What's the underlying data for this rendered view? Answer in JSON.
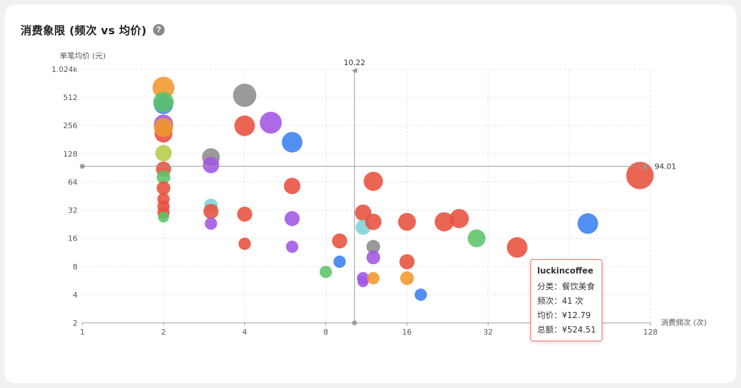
{
  "header": {
    "title": "消费象限 (频次 vs 均价)",
    "help_icon": "question-circle-icon"
  },
  "tooltip": {
    "title": "luckincoffee",
    "rows": [
      "分类：餐饮美食",
      "频次：41 次",
      "均价：¥12.79",
      "总额：¥524.51"
    ]
  },
  "chart_data": {
    "type": "scatter",
    "title": "消费象限 (频次 vs 均价)",
    "ylabel": "单笔均价 (元)",
    "xlabel": "消费频次 (次)",
    "x_scale": "log2",
    "y_scale": "log2",
    "xlim": [
      1,
      128
    ],
    "ylim": [
      2,
      1024
    ],
    "x_ticks": [
      "1",
      "2",
      "4",
      "8",
      "16",
      "32",
      "64",
      "128"
    ],
    "y_ticks": [
      "2",
      "4",
      "8",
      "16",
      "32",
      "64",
      "128",
      "256",
      "512",
      "1.024k"
    ],
    "reference_lines": {
      "x": 10.22,
      "y": 94.01,
      "x_label": "10.22",
      "y_label": "94.01"
    },
    "colors": {
      "red": "#e8503e",
      "orange": "#f0972e",
      "green": "#5cc46a",
      "blue": "#3a7ff0",
      "purple": "#a155e3",
      "gray": "#8c8c8c",
      "teal": "#7fd1d9",
      "olive": "#b4cc4a"
    },
    "points": [
      {
        "x": 2,
        "y": 650,
        "r": 16,
        "c": "orange"
      },
      {
        "x": 2,
        "y": 430,
        "r": 14,
        "c": "blue"
      },
      {
        "x": 2,
        "y": 455,
        "r": 15,
        "c": "green"
      },
      {
        "x": 2,
        "y": 265,
        "r": 14,
        "c": "purple"
      },
      {
        "x": 2,
        "y": 210,
        "r": 13,
        "c": "red"
      },
      {
        "x": 2,
        "y": 245,
        "r": 14,
        "c": "orange"
      },
      {
        "x": 2,
        "y": 130,
        "r": 12,
        "c": "olive"
      },
      {
        "x": 2,
        "y": 88,
        "r": 11,
        "c": "red"
      },
      {
        "x": 2,
        "y": 72,
        "r": 10,
        "c": "green"
      },
      {
        "x": 2,
        "y": 55,
        "r": 10,
        "c": "red"
      },
      {
        "x": 2,
        "y": 42,
        "r": 9,
        "c": "red"
      },
      {
        "x": 2,
        "y": 35,
        "r": 9,
        "c": "red"
      },
      {
        "x": 2,
        "y": 30,
        "r": 9,
        "c": "red"
      },
      {
        "x": 2,
        "y": 27,
        "r": 8,
        "c": "green"
      },
      {
        "x": 3,
        "y": 118,
        "r": 13,
        "c": "gray"
      },
      {
        "x": 3,
        "y": 97,
        "r": 12,
        "c": "purple"
      },
      {
        "x": 3,
        "y": 36,
        "r": 10,
        "c": "teal"
      },
      {
        "x": 3,
        "y": 31,
        "r": 11,
        "c": "red"
      },
      {
        "x": 3,
        "y": 23,
        "r": 9,
        "c": "purple"
      },
      {
        "x": 4,
        "y": 540,
        "r": 17,
        "c": "gray"
      },
      {
        "x": 4,
        "y": 255,
        "r": 15,
        "c": "red"
      },
      {
        "x": 4,
        "y": 29,
        "r": 11,
        "c": "red"
      },
      {
        "x": 4,
        "y": 14,
        "r": 9,
        "c": "red"
      },
      {
        "x": 5,
        "y": 275,
        "r": 16,
        "c": "purple"
      },
      {
        "x": 6,
        "y": 170,
        "r": 15,
        "c": "blue"
      },
      {
        "x": 6,
        "y": 58,
        "r": 12,
        "c": "red"
      },
      {
        "x": 6,
        "y": 26,
        "r": 11,
        "c": "purple"
      },
      {
        "x": 6,
        "y": 13,
        "r": 9,
        "c": "purple"
      },
      {
        "x": 8,
        "y": 7,
        "r": 9,
        "c": "green"
      },
      {
        "x": 9,
        "y": 15,
        "r": 11,
        "c": "red"
      },
      {
        "x": 9,
        "y": 9,
        "r": 9,
        "c": "blue"
      },
      {
        "x": 11,
        "y": 30,
        "r": 12,
        "c": "red"
      },
      {
        "x": 11,
        "y": 21,
        "r": 11,
        "c": "teal"
      },
      {
        "x": 11,
        "y": 6,
        "r": 9,
        "c": "purple"
      },
      {
        "x": 11,
        "y": 5.5,
        "r": 8,
        "c": "purple"
      },
      {
        "x": 12,
        "y": 65,
        "r": 14,
        "c": "red"
      },
      {
        "x": 12,
        "y": 24,
        "r": 12,
        "c": "red"
      },
      {
        "x": 12,
        "y": 13,
        "r": 10,
        "c": "gray"
      },
      {
        "x": 12,
        "y": 10,
        "r": 10,
        "c": "purple"
      },
      {
        "x": 12,
        "y": 6,
        "r": 9,
        "c": "orange"
      },
      {
        "x": 16,
        "y": 24,
        "r": 13,
        "c": "red"
      },
      {
        "x": 16,
        "y": 9,
        "r": 11,
        "c": "red"
      },
      {
        "x": 16,
        "y": 6,
        "r": 10,
        "c": "orange"
      },
      {
        "x": 18,
        "y": 4,
        "r": 9,
        "c": "blue"
      },
      {
        "x": 22,
        "y": 24,
        "r": 14,
        "c": "red"
      },
      {
        "x": 25,
        "y": 26,
        "r": 14,
        "c": "red"
      },
      {
        "x": 29,
        "y": 16,
        "r": 13,
        "c": "green"
      },
      {
        "x": 41,
        "y": 12.79,
        "r": 15,
        "c": "red"
      },
      {
        "x": 75,
        "y": 23,
        "r": 15,
        "c": "blue"
      },
      {
        "x": 117,
        "y": 75,
        "r": 20,
        "c": "red"
      }
    ]
  }
}
